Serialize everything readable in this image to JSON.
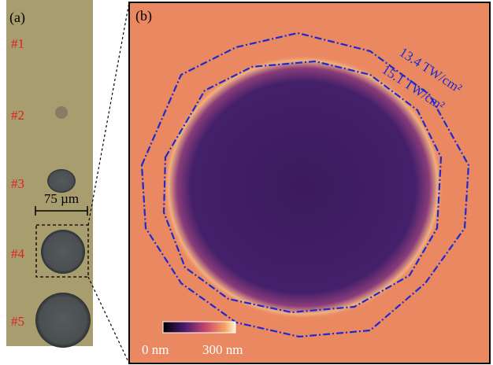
{
  "panel_a": {
    "label": "(a)",
    "spots": [
      "#1",
      "#2",
      "#3",
      "#4",
      "#5"
    ],
    "scale_bar": "75 µm"
  },
  "panel_b": {
    "label": "(b)",
    "contours": [
      "13.4 TW/cm²",
      "15.1 TW/cm²"
    ],
    "colorbar": {
      "min_label": "0 nm",
      "max_label": "300 nm"
    }
  }
}
